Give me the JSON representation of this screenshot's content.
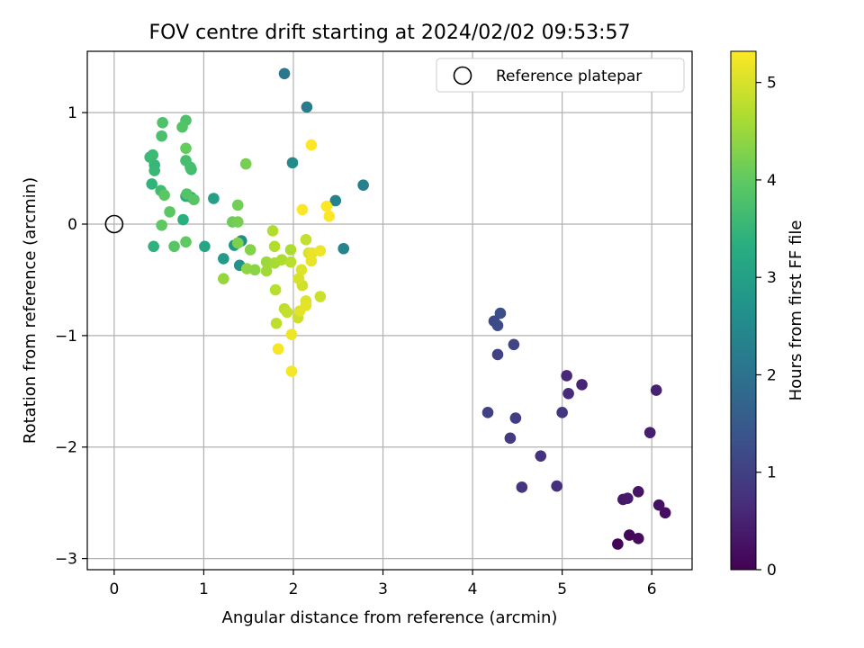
{
  "chart_data": {
    "type": "scatter",
    "title": "FOV centre drift starting at 2024/02/02 09:53:57",
    "xlabel": "Angular distance from reference (arcmin)",
    "ylabel": "Rotation from reference (arcmin)",
    "xlim": [
      -0.3,
      6.45
    ],
    "ylim": [
      -3.1,
      1.55
    ],
    "x_ticks": [
      0,
      1,
      2,
      3,
      4,
      5,
      6
    ],
    "y_ticks": [
      -3,
      -2,
      -1,
      0,
      1
    ],
    "grid": true,
    "legend": {
      "placement": "top-right",
      "entries": [
        "Reference platepar"
      ]
    },
    "colorbar": {
      "label": "Hours from first FF file",
      "range": [
        0,
        5.32
      ],
      "ticks": [
        0,
        1,
        2,
        3,
        4,
        5
      ],
      "colormap": "viridis"
    },
    "reference_point": {
      "x": 0,
      "y": 0,
      "label": "Reference platepar"
    },
    "series": [
      {
        "points": [
          {
            "x": 5.62,
            "y": -2.87,
            "h": 0.05
          },
          {
            "x": 5.75,
            "y": -2.79,
            "h": 0.1
          },
          {
            "x": 5.85,
            "y": -2.82,
            "h": 0.15
          },
          {
            "x": 6.15,
            "y": -2.59,
            "h": 0.2
          },
          {
            "x": 6.08,
            "y": -2.52,
            "h": 0.25
          },
          {
            "x": 5.85,
            "y": -2.4,
            "h": 0.3
          },
          {
            "x": 5.68,
            "y": -2.47,
            "h": 0.35
          },
          {
            "x": 5.73,
            "y": -2.46,
            "h": 0.4
          },
          {
            "x": 5.98,
            "y": -1.87,
            "h": 0.45
          },
          {
            "x": 6.05,
            "y": -1.49,
            "h": 0.5
          },
          {
            "x": 5.22,
            "y": -1.44,
            "h": 0.55
          },
          {
            "x": 5.05,
            "y": -1.36,
            "h": 0.6
          },
          {
            "x": 5.07,
            "y": -1.52,
            "h": 0.65
          },
          {
            "x": 4.94,
            "y": -2.35,
            "h": 0.7
          },
          {
            "x": 4.76,
            "y": -2.08,
            "h": 0.75
          },
          {
            "x": 4.55,
            "y": -2.36,
            "h": 0.8
          },
          {
            "x": 5.0,
            "y": -1.69,
            "h": 0.85
          },
          {
            "x": 4.42,
            "y": -1.92,
            "h": 0.9
          },
          {
            "x": 4.48,
            "y": -1.74,
            "h": 0.95
          },
          {
            "x": 4.17,
            "y": -1.69,
            "h": 1.0
          },
          {
            "x": 4.28,
            "y": -1.17,
            "h": 1.05
          },
          {
            "x": 4.46,
            "y": -1.08,
            "h": 1.1
          },
          {
            "x": 4.24,
            "y": -0.87,
            "h": 1.15
          },
          {
            "x": 4.28,
            "y": -0.91,
            "h": 1.2
          },
          {
            "x": 4.31,
            "y": -0.8,
            "h": 1.25
          },
          {
            "x": 1.9,
            "y": 1.35,
            "h": 2.1
          },
          {
            "x": 2.15,
            "y": 1.05,
            "h": 2.2
          },
          {
            "x": 2.78,
            "y": 0.35,
            "h": 2.3
          },
          {
            "x": 2.47,
            "y": 0.21,
            "h": 2.35
          },
          {
            "x": 2.56,
            "y": -0.22,
            "h": 2.4
          },
          {
            "x": 1.99,
            "y": 0.55,
            "h": 2.5
          },
          {
            "x": 1.42,
            "y": -0.15,
            "h": 2.6
          },
          {
            "x": 1.4,
            "y": -0.37,
            "h": 2.7
          },
          {
            "x": 1.34,
            "y": -0.19,
            "h": 2.8
          },
          {
            "x": 1.22,
            "y": -0.31,
            "h": 2.9
          },
          {
            "x": 1.11,
            "y": 0.23,
            "h": 3.0
          },
          {
            "x": 1.01,
            "y": -0.2,
            "h": 3.1
          },
          {
            "x": 0.8,
            "y": 0.25,
            "h": 3.2
          },
          {
            "x": 0.86,
            "y": 0.24,
            "h": 3.3
          },
          {
            "x": 0.77,
            "y": 0.04,
            "h": 3.35
          },
          {
            "x": 0.44,
            "y": -0.2,
            "h": 3.4
          },
          {
            "x": 0.42,
            "y": 0.36,
            "h": 3.45
          },
          {
            "x": 0.45,
            "y": 0.53,
            "h": 3.5
          },
          {
            "x": 0.45,
            "y": 0.48,
            "h": 3.55
          },
          {
            "x": 0.4,
            "y": 0.6,
            "h": 3.6
          },
          {
            "x": 0.43,
            "y": 0.62,
            "h": 3.6
          },
          {
            "x": 0.52,
            "y": 0.3,
            "h": 3.65
          },
          {
            "x": 0.86,
            "y": 0.49,
            "h": 3.65
          },
          {
            "x": 0.85,
            "y": 0.51,
            "h": 3.7
          },
          {
            "x": 0.8,
            "y": 0.57,
            "h": 3.7
          },
          {
            "x": 0.53,
            "y": 0.79,
            "h": 3.75
          },
          {
            "x": 0.54,
            "y": 0.91,
            "h": 3.8
          },
          {
            "x": 0.8,
            "y": 0.93,
            "h": 3.8
          },
          {
            "x": 0.76,
            "y": 0.87,
            "h": 3.85
          },
          {
            "x": 0.81,
            "y": 0.27,
            "h": 3.85
          },
          {
            "x": 0.89,
            "y": 0.22,
            "h": 3.9
          },
          {
            "x": 0.67,
            "y": -0.2,
            "h": 3.9
          },
          {
            "x": 0.62,
            "y": 0.11,
            "h": 3.95
          },
          {
            "x": 0.56,
            "y": 0.26,
            "h": 3.95
          },
          {
            "x": 0.53,
            "y": -0.01,
            "h": 4.0
          },
          {
            "x": 0.8,
            "y": -0.16,
            "h": 4.0
          },
          {
            "x": 0.8,
            "y": 0.68,
            "h": 4.05
          },
          {
            "x": 1.32,
            "y": 0.02,
            "h": 4.1
          },
          {
            "x": 1.38,
            "y": 0.17,
            "h": 4.15
          },
          {
            "x": 1.38,
            "y": 0.02,
            "h": 4.2
          },
          {
            "x": 1.47,
            "y": 0.54,
            "h": 4.2
          },
          {
            "x": 1.38,
            "y": -0.17,
            "h": 4.25
          },
          {
            "x": 1.52,
            "y": -0.23,
            "h": 4.3
          },
          {
            "x": 1.57,
            "y": -0.41,
            "h": 4.35
          },
          {
            "x": 1.48,
            "y": -0.4,
            "h": 4.4
          },
          {
            "x": 1.22,
            "y": -0.49,
            "h": 4.45
          },
          {
            "x": 1.7,
            "y": -0.34,
            "h": 4.5
          },
          {
            "x": 1.7,
            "y": -0.42,
            "h": 4.55
          },
          {
            "x": 1.79,
            "y": -0.35,
            "h": 4.6
          },
          {
            "x": 1.87,
            "y": -0.32,
            "h": 4.65
          },
          {
            "x": 1.97,
            "y": -0.23,
            "h": 4.65
          },
          {
            "x": 1.79,
            "y": -0.2,
            "h": 4.7
          },
          {
            "x": 1.77,
            "y": -0.06,
            "h": 4.7
          },
          {
            "x": 1.97,
            "y": -0.34,
            "h": 4.75
          },
          {
            "x": 1.8,
            "y": -0.59,
            "h": 4.75
          },
          {
            "x": 1.81,
            "y": -0.89,
            "h": 4.8
          },
          {
            "x": 1.9,
            "y": -0.76,
            "h": 4.8
          },
          {
            "x": 1.93,
            "y": -0.79,
            "h": 4.85
          },
          {
            "x": 2.14,
            "y": -0.14,
            "h": 4.85
          },
          {
            "x": 2.3,
            "y": -0.65,
            "h": 4.9
          },
          {
            "x": 2.05,
            "y": -0.84,
            "h": 4.9
          },
          {
            "x": 2.1,
            "y": -0.55,
            "h": 4.95
          },
          {
            "x": 2.17,
            "y": -0.26,
            "h": 5.0
          },
          {
            "x": 2.06,
            "y": -0.49,
            "h": 5.0
          },
          {
            "x": 2.09,
            "y": -0.41,
            "h": 5.05
          },
          {
            "x": 2.14,
            "y": -0.69,
            "h": 5.05
          },
          {
            "x": 2.14,
            "y": -0.73,
            "h": 5.1
          },
          {
            "x": 2.07,
            "y": -0.78,
            "h": 5.1
          },
          {
            "x": 2.2,
            "y": -0.33,
            "h": 5.15
          },
          {
            "x": 2.21,
            "y": -0.26,
            "h": 5.15
          },
          {
            "x": 2.3,
            "y": -0.24,
            "h": 5.2
          },
          {
            "x": 1.98,
            "y": -0.99,
            "h": 5.2
          },
          {
            "x": 1.83,
            "y": -1.12,
            "h": 5.25
          },
          {
            "x": 1.98,
            "y": -1.32,
            "h": 5.25
          },
          {
            "x": 2.1,
            "y": 0.13,
            "h": 5.3
          },
          {
            "x": 2.37,
            "y": 0.16,
            "h": 5.3
          },
          {
            "x": 2.4,
            "y": 0.07,
            "h": 5.3
          },
          {
            "x": 2.2,
            "y": 0.71,
            "h": 5.32
          }
        ]
      }
    ]
  }
}
